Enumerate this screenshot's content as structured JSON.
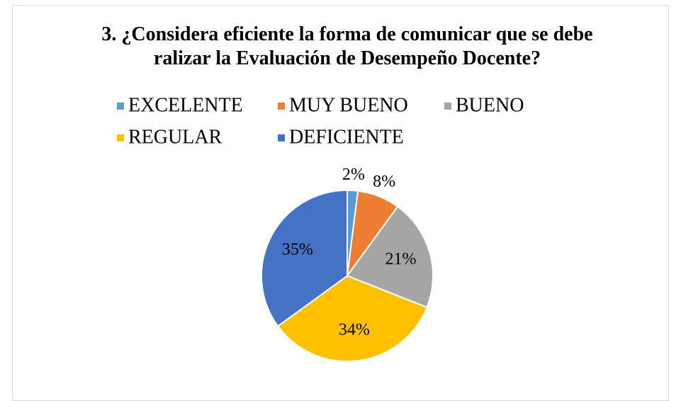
{
  "chart_data": {
    "type": "pie",
    "title": "3. ¿Considera eficiente la forma de comunicar que se debe ralizar la Evaluación de Desempeño Docente?",
    "categories": [
      "EXCELENTE",
      "MUY BUENO",
      "BUENO",
      "REGULAR",
      "DEFICIENTE"
    ],
    "values": [
      2,
      8,
      21,
      34,
      35
    ],
    "value_labels": [
      "2%",
      "8%",
      "21%",
      "34%",
      "35%"
    ],
    "colors": [
      "#5b9bd5",
      "#ed7d31",
      "#a5a5a5",
      "#ffc000",
      "#4472c4"
    ],
    "legend": "top"
  }
}
